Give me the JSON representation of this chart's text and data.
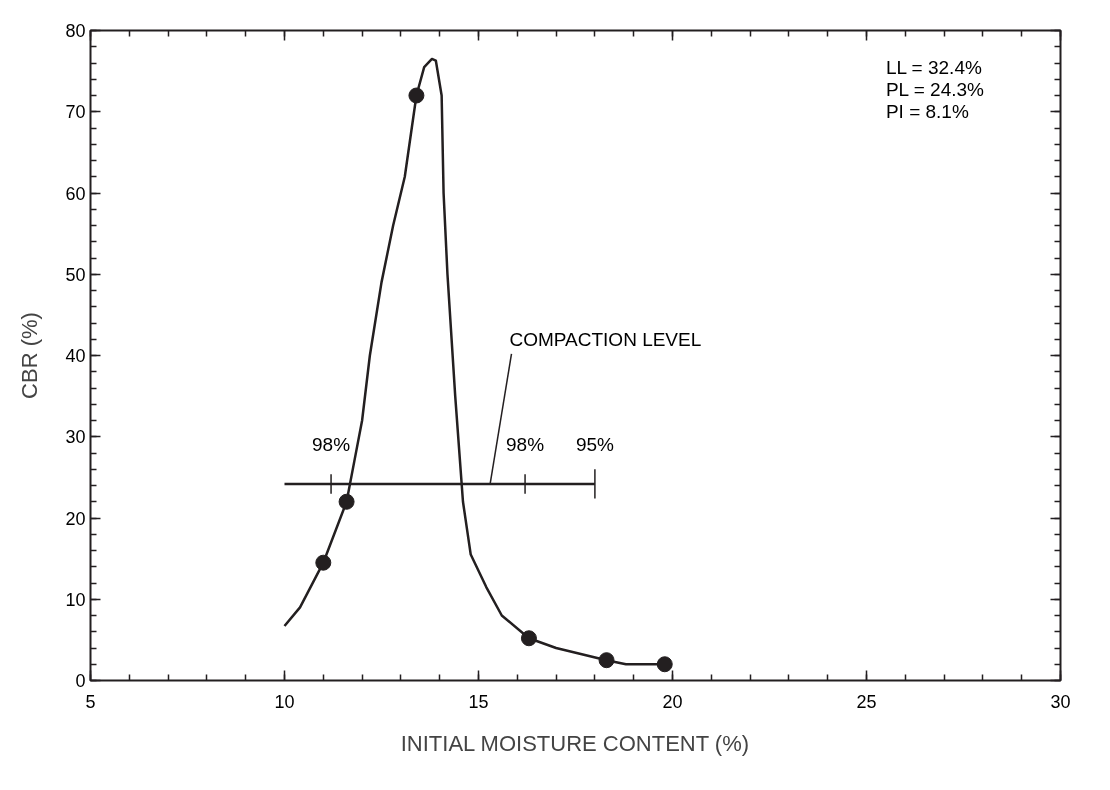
{
  "chart_data": {
    "type": "line",
    "xlabel": "INITIAL MOISTURE CONTENT (%)",
    "ylabel": "CBR (%)",
    "xlim": [
      5,
      30
    ],
    "ylim": [
      0,
      80
    ],
    "xticks": [
      5,
      10,
      15,
      20,
      25,
      30
    ],
    "yticks": [
      0,
      10,
      20,
      30,
      40,
      50,
      60,
      70,
      80
    ],
    "grid": false,
    "series": [
      {
        "color": "#231f20",
        "x": [
          10,
          10.4,
          11,
          11.6,
          11.8,
          12,
          12.2,
          12.5,
          12.8,
          13.1,
          13.4,
          13.6,
          13.8,
          13.9,
          14.05,
          14.1,
          14.2,
          14.4,
          14.6,
          14.8,
          15.2,
          15.6,
          16.3,
          17,
          18.3,
          18.8,
          19.8
        ],
        "values": [
          6.7,
          9,
          14.5,
          22,
          27,
          32,
          40,
          49,
          56,
          62,
          72,
          75.5,
          76.5,
          76.3,
          72,
          60,
          50,
          35,
          22,
          15.5,
          11.5,
          8,
          5.2,
          4,
          2.5,
          2,
          2
        ],
        "marker": "none",
        "line_style": "solid"
      },
      {
        "type": "scatter",
        "color": "#231f20",
        "x": [
          11.0,
          11.6,
          13.4,
          16.3,
          18.3,
          19.8
        ],
        "values": [
          14.5,
          22,
          72,
          5.2,
          2.5,
          2.0
        ],
        "marker": "circle"
      },
      {
        "type": "line",
        "color": "#231f20",
        "x": [
          10,
          11.2,
          16.2,
          18
        ],
        "values": [
          24.2,
          24.2,
          24.2,
          24.2
        ],
        "errors": [
          null,
          1.2,
          1.2,
          1.8
        ],
        "marker": "none",
        "line_style": "solid"
      }
    ],
    "annotations": [
      {
        "text": "98%",
        "x": 11.2,
        "y": 24.2
      },
      {
        "text": "98%",
        "x": 16.2,
        "y": 24.2
      },
      {
        "text": "95%",
        "x": 18,
        "y": 24.2
      },
      {
        "text": "COMPACTION LEVEL",
        "x": 15.3,
        "y": 24.2
      },
      "LL = 32.4%\nPL = 24.3%\nPI = 8.1%"
    ]
  }
}
